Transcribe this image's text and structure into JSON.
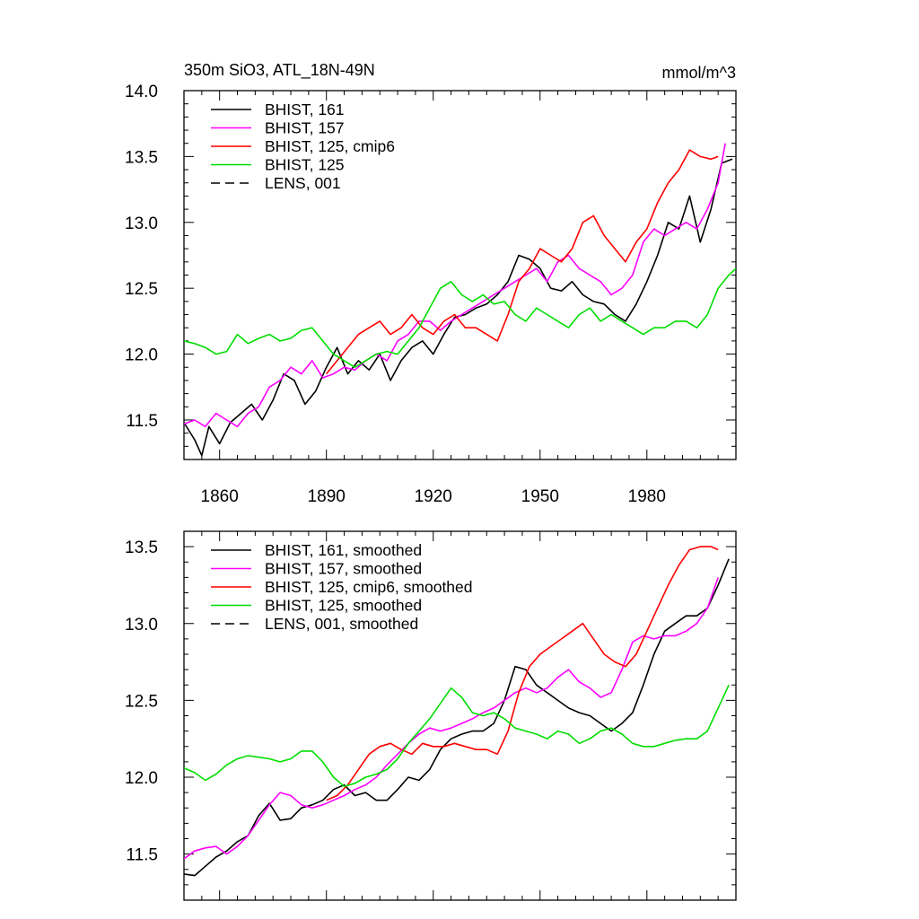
{
  "chart_data": [
    {
      "type": "line",
      "title": "350m SiO3, ATL_18N-49N",
      "units": "mmol/m^3",
      "xlim": [
        1850,
        2005
      ],
      "ylim": [
        11.2,
        14.0
      ],
      "xticks": [
        1860,
        1890,
        1920,
        1950,
        1980
      ],
      "yticks": [
        11.5,
        12.0,
        12.5,
        13.0,
        13.5,
        14.0
      ],
      "ytick_labels": [
        "11.5",
        "12.0",
        "12.5",
        "13.0",
        "13.5",
        "14.0"
      ],
      "legend": [
        "BHIST, 161",
        "BHIST, 157",
        "BHIST, 125, cmip6",
        "BHIST, 125",
        "LENS, 001"
      ],
      "series": [
        {
          "name": "BHIST, 161",
          "color": "#000000",
          "dash": "none",
          "x": [
            1850,
            1853,
            1855,
            1857,
            1860,
            1863,
            1866,
            1869,
            1872,
            1875,
            1878,
            1881,
            1884,
            1887,
            1890,
            1893,
            1896,
            1899,
            1902,
            1905,
            1908,
            1911,
            1914,
            1917,
            1920,
            1923,
            1926,
            1929,
            1932,
            1935,
            1938,
            1941,
            1944,
            1947,
            1950,
            1953,
            1956,
            1959,
            1962,
            1965,
            1968,
            1971,
            1974,
            1977,
            1980,
            1983,
            1986,
            1989,
            1992,
            1995,
            1998,
            2001,
            2004
          ],
          "y": [
            11.48,
            11.35,
            11.23,
            11.45,
            11.32,
            11.48,
            11.55,
            11.62,
            11.5,
            11.65,
            11.85,
            11.8,
            11.62,
            11.72,
            11.9,
            12.05,
            11.85,
            11.95,
            11.88,
            12.0,
            11.8,
            11.95,
            12.05,
            12.1,
            12.0,
            12.15,
            12.28,
            12.3,
            12.35,
            12.38,
            12.45,
            12.55,
            12.75,
            12.72,
            12.65,
            12.5,
            12.48,
            12.55,
            12.45,
            12.4,
            12.38,
            12.3,
            12.25,
            12.38,
            12.55,
            12.75,
            13.0,
            12.95,
            13.2,
            12.85,
            13.1,
            13.45,
            13.48
          ]
        },
        {
          "name": "BHIST, 157",
          "color": "#ff00ff",
          "dash": "none",
          "x": [
            1850,
            1853,
            1856,
            1859,
            1862,
            1865,
            1868,
            1871,
            1874,
            1877,
            1880,
            1883,
            1886,
            1889,
            1892,
            1895,
            1898,
            1901,
            1904,
            1907,
            1910,
            1913,
            1916,
            1919,
            1922,
            1925,
            1928,
            1931,
            1934,
            1937,
            1940,
            1943,
            1946,
            1949,
            1952,
            1955,
            1958,
            1961,
            1964,
            1967,
            1970,
            1973,
            1976,
            1979,
            1982,
            1985,
            1988,
            1991,
            1994,
            1997,
            2000,
            2002
          ],
          "y": [
            11.47,
            11.5,
            11.45,
            11.55,
            11.5,
            11.45,
            11.55,
            11.6,
            11.75,
            11.8,
            11.9,
            11.85,
            11.95,
            11.82,
            11.85,
            11.9,
            11.88,
            11.95,
            12.0,
            11.95,
            12.1,
            12.15,
            12.25,
            12.25,
            12.18,
            12.25,
            12.3,
            12.35,
            12.4,
            12.45,
            12.5,
            12.55,
            12.6,
            12.65,
            12.55,
            12.7,
            12.75,
            12.65,
            12.6,
            12.55,
            12.45,
            12.5,
            12.6,
            12.85,
            12.95,
            12.9,
            12.95,
            13.0,
            12.95,
            13.1,
            13.3,
            13.6
          ]
        },
        {
          "name": "BHIST, 125, cmip6",
          "color": "#ff0000",
          "dash": "none",
          "x": [
            1890,
            1893,
            1896,
            1899,
            1902,
            1905,
            1908,
            1911,
            1914,
            1917,
            1920,
            1923,
            1926,
            1929,
            1932,
            1935,
            1938,
            1941,
            1944,
            1947,
            1950,
            1953,
            1956,
            1959,
            1962,
            1965,
            1968,
            1971,
            1974,
            1977,
            1980,
            1983,
            1986,
            1989,
            1992,
            1995,
            1998,
            2000
          ],
          "y": [
            11.85,
            11.95,
            12.05,
            12.15,
            12.2,
            12.25,
            12.15,
            12.2,
            12.3,
            12.2,
            12.15,
            12.25,
            12.3,
            12.2,
            12.2,
            12.15,
            12.1,
            12.3,
            12.55,
            12.65,
            12.8,
            12.75,
            12.7,
            12.8,
            13.0,
            13.05,
            12.9,
            12.8,
            12.7,
            12.85,
            12.95,
            13.15,
            13.3,
            13.4,
            13.55,
            13.5,
            13.48,
            13.5
          ]
        },
        {
          "name": "BHIST, 125",
          "color": "#00dd00",
          "dash": "none",
          "x": [
            1850,
            1853,
            1856,
            1859,
            1862,
            1865,
            1868,
            1871,
            1874,
            1877,
            1880,
            1883,
            1886,
            1889,
            1892,
            1895,
            1898,
            1901,
            1904,
            1907,
            1910,
            1913,
            1916,
            1919,
            1922,
            1925,
            1928,
            1931,
            1934,
            1937,
            1940,
            1943,
            1946,
            1949,
            1952,
            1955,
            1958,
            1961,
            1964,
            1967,
            1970,
            1973,
            1976,
            1979,
            1982,
            1985,
            1988,
            1991,
            1994,
            1997,
            2000,
            2003,
            2005
          ],
          "y": [
            12.1,
            12.08,
            12.05,
            12.0,
            12.02,
            12.15,
            12.08,
            12.12,
            12.15,
            12.1,
            12.12,
            12.18,
            12.2,
            12.1,
            12.0,
            11.95,
            11.9,
            11.95,
            12.0,
            12.02,
            12.0,
            12.1,
            12.2,
            12.35,
            12.5,
            12.55,
            12.45,
            12.4,
            12.45,
            12.38,
            12.4,
            12.3,
            12.25,
            12.35,
            12.3,
            12.25,
            12.2,
            12.3,
            12.35,
            12.25,
            12.3,
            12.25,
            12.2,
            12.15,
            12.2,
            12.2,
            12.25,
            12.25,
            12.2,
            12.3,
            12.5,
            12.6,
            12.65
          ]
        },
        {
          "name": "LENS, 001",
          "color": "#000000",
          "dash": "10,6",
          "x": [],
          "y": []
        }
      ]
    },
    {
      "type": "line",
      "title": "",
      "units": "",
      "xlim": [
        1850,
        2005
      ],
      "ylim": [
        11.2,
        13.6
      ],
      "xticks": [
        1860,
        1890,
        1920,
        1950,
        1980
      ],
      "yticks": [
        11.5,
        12.0,
        12.5,
        13.0,
        13.5
      ],
      "ytick_labels": [
        "11.5",
        "12.0",
        "12.5",
        "13.0",
        "13.5"
      ],
      "legend": [
        "BHIST, 161, smoothed",
        "BHIST, 157, smoothed",
        "BHIST, 125, cmip6, smoothed",
        "BHIST, 125, smoothed",
        "LENS, 001, smoothed"
      ],
      "series": [
        {
          "name": "BHIST, 161, smoothed",
          "color": "#000000",
          "dash": "none",
          "x": [
            1850,
            1853,
            1856,
            1859,
            1862,
            1865,
            1868,
            1871,
            1874,
            1877,
            1880,
            1883,
            1886,
            1889,
            1892,
            1895,
            1898,
            1901,
            1904,
            1907,
            1910,
            1913,
            1916,
            1919,
            1922,
            1925,
            1928,
            1931,
            1934,
            1937,
            1940,
            1943,
            1946,
            1949,
            1952,
            1955,
            1958,
            1961,
            1964,
            1967,
            1970,
            1973,
            1976,
            1979,
            1982,
            1985,
            1988,
            1991,
            1994,
            1997,
            2000,
            2003
          ],
          "y": [
            11.37,
            11.36,
            11.42,
            11.48,
            11.52,
            11.58,
            11.62,
            11.75,
            11.83,
            11.72,
            11.73,
            11.8,
            11.82,
            11.85,
            11.92,
            11.95,
            11.88,
            11.9,
            11.85,
            11.85,
            11.92,
            12.0,
            11.98,
            12.05,
            12.18,
            12.25,
            12.28,
            12.3,
            12.3,
            12.35,
            12.5,
            12.72,
            12.7,
            12.6,
            12.55,
            12.5,
            12.45,
            12.42,
            12.4,
            12.35,
            12.3,
            12.35,
            12.42,
            12.6,
            12.8,
            12.95,
            13.0,
            13.05,
            13.05,
            13.1,
            13.25,
            13.42
          ]
        },
        {
          "name": "BHIST, 157, smoothed",
          "color": "#ff00ff",
          "dash": "none",
          "x": [
            1850,
            1853,
            1856,
            1859,
            1862,
            1865,
            1868,
            1871,
            1874,
            1877,
            1880,
            1883,
            1886,
            1889,
            1892,
            1895,
            1898,
            1901,
            1904,
            1907,
            1910,
            1913,
            1916,
            1919,
            1922,
            1925,
            1928,
            1931,
            1934,
            1937,
            1940,
            1943,
            1946,
            1949,
            1952,
            1955,
            1958,
            1961,
            1964,
            1967,
            1970,
            1973,
            1976,
            1979,
            1982,
            1985,
            1988,
            1991,
            1994,
            1997,
            2000
          ],
          "y": [
            11.47,
            11.52,
            11.54,
            11.55,
            11.5,
            11.55,
            11.62,
            11.72,
            11.82,
            11.9,
            11.88,
            11.82,
            11.8,
            11.82,
            11.85,
            11.88,
            11.92,
            11.95,
            12.0,
            12.08,
            12.15,
            12.22,
            12.28,
            12.32,
            12.3,
            12.32,
            12.35,
            12.38,
            12.42,
            12.45,
            12.5,
            12.55,
            12.58,
            12.55,
            12.58,
            12.65,
            12.7,
            12.62,
            12.58,
            12.52,
            12.55,
            12.7,
            12.88,
            12.92,
            12.9,
            12.92,
            12.92,
            12.95,
            13.0,
            13.1,
            13.3
          ]
        },
        {
          "name": "BHIST, 125, cmip6, smoothed",
          "color": "#ff0000",
          "dash": "none",
          "x": [
            1890,
            1893,
            1896,
            1899,
            1902,
            1905,
            1908,
            1911,
            1914,
            1917,
            1920,
            1923,
            1926,
            1929,
            1932,
            1935,
            1938,
            1941,
            1944,
            1947,
            1950,
            1953,
            1956,
            1959,
            1962,
            1965,
            1968,
            1971,
            1974,
            1977,
            1980,
            1983,
            1986,
            1989,
            1992,
            1995,
            1998,
            2000
          ],
          "y": [
            11.85,
            11.88,
            11.95,
            12.05,
            12.15,
            12.2,
            12.22,
            12.18,
            12.15,
            12.22,
            12.2,
            12.2,
            12.22,
            12.2,
            12.18,
            12.18,
            12.15,
            12.3,
            12.55,
            12.72,
            12.8,
            12.85,
            12.9,
            12.95,
            13.0,
            12.9,
            12.8,
            12.75,
            12.72,
            12.8,
            12.95,
            13.1,
            13.25,
            13.38,
            13.48,
            13.5,
            13.5,
            13.48
          ]
        },
        {
          "name": "BHIST, 125, smoothed",
          "color": "#00dd00",
          "dash": "none",
          "x": [
            1850,
            1853,
            1856,
            1859,
            1862,
            1865,
            1868,
            1871,
            1874,
            1877,
            1880,
            1883,
            1886,
            1889,
            1892,
            1895,
            1898,
            1901,
            1904,
            1907,
            1910,
            1913,
            1916,
            1919,
            1922,
            1925,
            1928,
            1931,
            1934,
            1937,
            1940,
            1943,
            1946,
            1949,
            1952,
            1955,
            1958,
            1961,
            1964,
            1967,
            1970,
            1973,
            1976,
            1979,
            1982,
            1985,
            1988,
            1991,
            1994,
            1997,
            2000,
            2003
          ],
          "y": [
            12.06,
            12.03,
            11.98,
            12.02,
            12.08,
            12.12,
            12.14,
            12.13,
            12.12,
            12.1,
            12.12,
            12.17,
            12.17,
            12.1,
            12.0,
            11.94,
            11.96,
            12.0,
            12.02,
            12.05,
            12.12,
            12.22,
            12.3,
            12.38,
            12.48,
            12.58,
            12.52,
            12.42,
            12.4,
            12.42,
            12.38,
            12.32,
            12.3,
            12.28,
            12.25,
            12.3,
            12.28,
            12.22,
            12.25,
            12.3,
            12.32,
            12.28,
            12.22,
            12.2,
            12.2,
            12.22,
            12.24,
            12.25,
            12.25,
            12.3,
            12.45,
            12.6
          ]
        },
        {
          "name": "LENS, 001, smoothed",
          "color": "#000000",
          "dash": "10,6",
          "x": [],
          "y": []
        }
      ]
    }
  ]
}
